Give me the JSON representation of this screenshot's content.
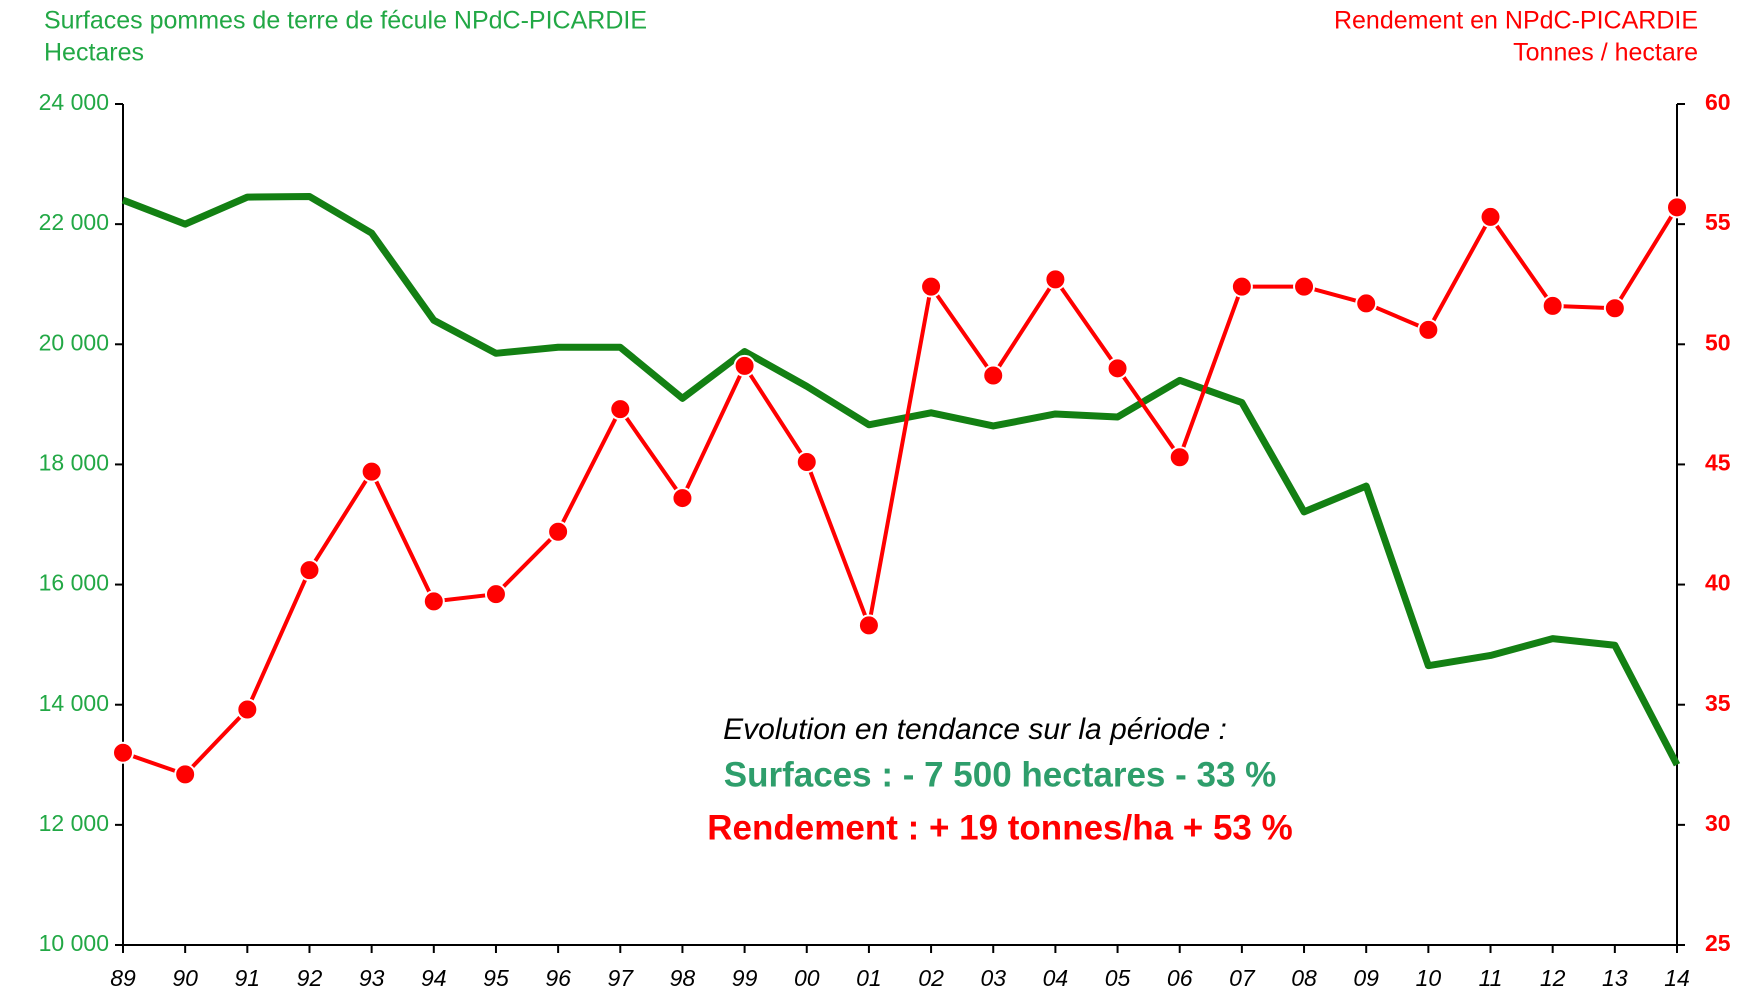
{
  "chart_data": {
    "type": "line",
    "title_left": [
      "Surfaces pommes de terre de fécule NPdC-PICARDIE",
      "Hectares"
    ],
    "title_right": [
      "Rendement  en NPdC-PICARDIE",
      "Tonnes / hectare"
    ],
    "categories": [
      "89",
      "90",
      "91",
      "92",
      "93",
      "94",
      "95",
      "96",
      "97",
      "98",
      "99",
      "00",
      "01",
      "02",
      "03",
      "04",
      "05",
      "06",
      "07",
      "08",
      "09",
      "10",
      "11",
      "12",
      "13",
      "14"
    ],
    "series": [
      {
        "name": "Surfaces",
        "color": "#138013",
        "axis": "y",
        "values": [
          22400,
          22000,
          22450,
          22460,
          21850,
          20400,
          19850,
          19950,
          19950,
          19100,
          19880,
          19300,
          18660,
          18860,
          18640,
          18840,
          18790,
          19400,
          19030,
          17210,
          17640,
          14650,
          14820,
          15100,
          14990,
          13000
        ]
      },
      {
        "name": "Rendement",
        "color": "#ff0000",
        "axis": "y2",
        "values": [
          33.0,
          32.1,
          34.8,
          40.6,
          44.7,
          39.3,
          39.6,
          42.2,
          47.3,
          43.6,
          49.1,
          45.1,
          38.3,
          52.4,
          48.7,
          52.7,
          49.0,
          45.3,
          52.4,
          52.4,
          51.7,
          50.6,
          55.3,
          51.6,
          51.5,
          55.7
        ]
      }
    ],
    "ylim": [
      10000,
      24000
    ],
    "yticks": [
      {
        "value": 10000,
        "label": "10 000"
      },
      {
        "value": 12000,
        "label": "12 000"
      },
      {
        "value": 14000,
        "label": "14 000"
      },
      {
        "value": 16000,
        "label": "16 000"
      },
      {
        "value": 18000,
        "label": "18 000"
      },
      {
        "value": 20000,
        "label": "20 000"
      },
      {
        "value": 22000,
        "label": "22 000"
      },
      {
        "value": 24000,
        "label": "24 000"
      }
    ],
    "y2lim": [
      25,
      60
    ],
    "y2ticks": [
      25,
      30,
      35,
      40,
      45,
      50,
      55,
      60
    ],
    "annotations": [
      "Evolution en tendance sur la période  :",
      "Surfaces : - 7 500 hectares   - 33 %",
      "Rendement : + 19 tonnes/ha + 53 %"
    ],
    "annotation_colors": [
      "#000000",
      "#2e9e6b",
      "#ff0000"
    ]
  }
}
